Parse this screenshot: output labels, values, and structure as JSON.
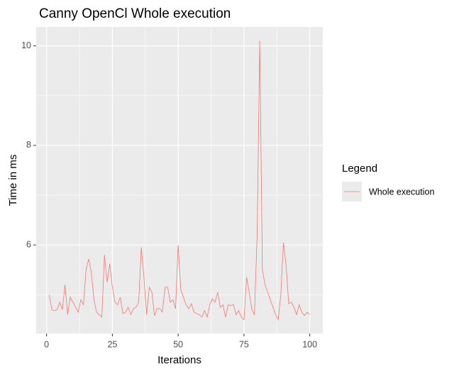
{
  "chart_data": {
    "type": "line",
    "title": "Canny OpenCl Whole execution",
    "x_label": "Iterations",
    "y_label": "Time in ms",
    "legend_title": "Legend",
    "legend_position": "right",
    "x": [
      1,
      2,
      3,
      4,
      5,
      6,
      7,
      8,
      9,
      10,
      11,
      12,
      13,
      14,
      15,
      16,
      17,
      18,
      19,
      20,
      21,
      22,
      23,
      24,
      25,
      26,
      27,
      28,
      29,
      30,
      31,
      32,
      33,
      34,
      35,
      36,
      37,
      38,
      39,
      40,
      41,
      42,
      43,
      44,
      45,
      46,
      47,
      48,
      49,
      50,
      51,
      52,
      53,
      54,
      55,
      56,
      57,
      58,
      59,
      60,
      61,
      62,
      63,
      64,
      65,
      66,
      67,
      68,
      69,
      70,
      71,
      72,
      73,
      74,
      75,
      76,
      77,
      78,
      79,
      80,
      81,
      82,
      83,
      84,
      85,
      86,
      87,
      88,
      89,
      90,
      91,
      92,
      93,
      94,
      95,
      96,
      97,
      98,
      99,
      100
    ],
    "series": [
      {
        "name": "Whole execution",
        "color": "#F8766D",
        "values": [
          5.0,
          4.7,
          4.68,
          4.7,
          4.85,
          4.7,
          5.2,
          4.6,
          4.95,
          4.85,
          4.75,
          4.65,
          4.9,
          4.8,
          5.5,
          5.72,
          5.45,
          4.9,
          4.65,
          4.6,
          4.55,
          5.8,
          5.25,
          5.62,
          5.15,
          4.85,
          4.8,
          4.95,
          4.62,
          4.65,
          4.75,
          4.6,
          4.72,
          4.75,
          4.85,
          5.95,
          5.35,
          4.6,
          5.15,
          5.05,
          4.58,
          4.72,
          4.72,
          4.65,
          5.15,
          5.15,
          4.85,
          4.9,
          4.72,
          6.0,
          5.1,
          4.95,
          4.8,
          4.72,
          4.82,
          4.65,
          4.62,
          4.6,
          4.55,
          4.68,
          4.55,
          4.8,
          4.92,
          4.85,
          5.05,
          4.75,
          4.8,
          4.55,
          4.8,
          4.78,
          4.8,
          4.6,
          4.68,
          4.55,
          4.5,
          5.35,
          5.05,
          4.7,
          4.6,
          6.2,
          10.1,
          5.5,
          5.2,
          5.05,
          4.9,
          4.75,
          4.6,
          4.5,
          5.0,
          6.05,
          5.6,
          4.82,
          4.85,
          4.75,
          4.6,
          4.8,
          4.65,
          4.58,
          4.65,
          4.6
        ]
      }
    ],
    "xlim": [
      -3.95,
      104.95
    ],
    "ylim": [
      4.22,
      10.38
    ],
    "xticks": [
      0,
      25,
      50,
      75,
      100
    ],
    "yticks": [
      6,
      8,
      10
    ],
    "minor_xticks": [
      12.5,
      37.5,
      62.5,
      87.5
    ],
    "minor_yticks": [
      5,
      7,
      9
    ],
    "grid": true
  }
}
